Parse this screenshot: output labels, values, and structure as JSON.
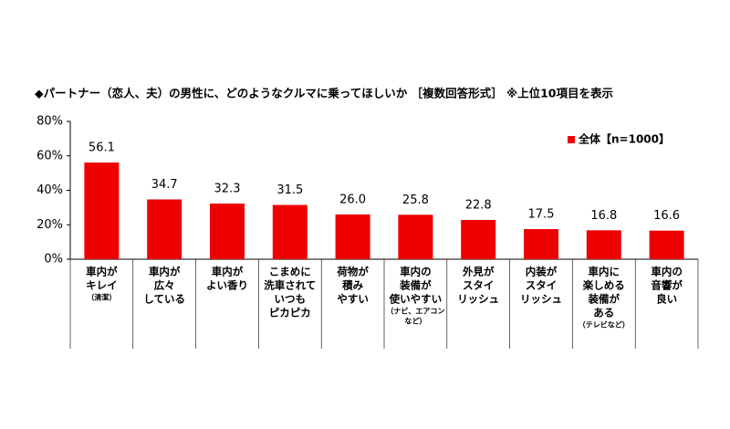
{
  "chart_data": {
    "type": "bar",
    "title": "◆パートナー（恋人、夫）の男性に、どのようなクルマに乗ってほしいか ［複数回答形式］ ※上位10項目を表示",
    "categories": [
      [
        "車内が",
        "キレイ"
      ],
      [
        "車内が",
        "広々",
        "している"
      ],
      [
        "車内が",
        "よい香り"
      ],
      [
        "こまめに",
        "洗車されて",
        "いつも",
        "ピカピカ"
      ],
      [
        "荷物が",
        "積み",
        "やすい"
      ],
      [
        "車内の",
        "装備が",
        "使いやすい"
      ],
      [
        "外見が",
        "スタイ",
        "リッシュ"
      ],
      [
        "内装が",
        "スタイ",
        "リッシュ"
      ],
      [
        "車内に",
        "楽しめる",
        "装備が",
        "ある"
      ],
      [
        "車内の",
        "音響が",
        "良い"
      ]
    ],
    "notes": [
      [
        "（清潔）"
      ],
      null,
      null,
      null,
      null,
      [
        "（ナビ、エアコン",
        "など）"
      ],
      null,
      null,
      [
        "（テレビなど）"
      ],
      null
    ],
    "series": [
      {
        "name": "全体【n=1000】",
        "color": "#ee0000",
        "values": [
          56.1,
          34.7,
          32.3,
          31.5,
          26,
          25.8,
          22.8,
          17.5,
          16.8,
          16.6
        ],
        "value_labels": [
          "56.1",
          "34.7",
          "32.3",
          "31.5",
          "26.0",
          "25.8",
          "22.8",
          "17.5",
          "16.8",
          "16.6"
        ]
      }
    ],
    "ylim": [
      0,
      80
    ],
    "yticks": [
      {
        "value": 0,
        "label": "0%"
      },
      {
        "value": 20,
        "label": "20%"
      },
      {
        "value": 40,
        "label": "40%"
      },
      {
        "value": 60,
        "label": "60%"
      },
      {
        "value": 80,
        "label": "80%"
      }
    ],
    "legend": "top-right"
  }
}
